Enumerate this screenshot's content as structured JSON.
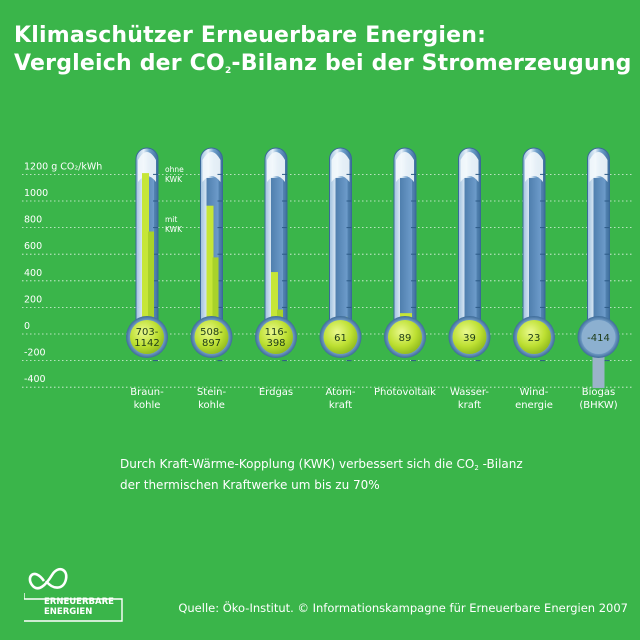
{
  "title": {
    "line1": "Klimaschützer Erneuerbare Energien:",
    "line2_pre": "Vergleich der CO",
    "line2_sub": "2",
    "line2_post": "-Bilanz bei der Stromerzeugung"
  },
  "chart_data": {
    "type": "bar",
    "unit_label": "1200 g CO₂/kWh",
    "yticks": [
      1200,
      1000,
      800,
      600,
      400,
      200,
      0,
      -200,
      -400
    ],
    "ylim": [
      -400,
      1200
    ],
    "legend": {
      "ohne": "ohne KWK",
      "mit": "mit KWK"
    },
    "categories": [
      {
        "label1": "Braun-",
        "label2": "kohle",
        "value_text": [
          "703-",
          "1142"
        ],
        "ohne_kwk": 1142,
        "mit_kwk": 703
      },
      {
        "label1": "Stein-",
        "label2": "kohle",
        "value_text": [
          "508-",
          "897"
        ],
        "ohne_kwk": 897,
        "mit_kwk": 508
      },
      {
        "label1": "Erdgas",
        "label2": "",
        "value_text": [
          "116-",
          "398"
        ],
        "ohne_kwk": 398,
        "mit_kwk": 116
      },
      {
        "label1": "Atom-",
        "label2": "kraft",
        "value_text": [
          "61"
        ],
        "ohne_kwk": 61,
        "mit_kwk": null
      },
      {
        "label1": "Photovoltaik",
        "label2": "",
        "value_text": [
          "89"
        ],
        "ohne_kwk": 89,
        "mit_kwk": null
      },
      {
        "label1": "Wasser-",
        "label2": "kraft",
        "value_text": [
          "39"
        ],
        "ohne_kwk": 39,
        "mit_kwk": null
      },
      {
        "label1": "Wind-",
        "label2": "energie",
        "value_text": [
          "23"
        ],
        "ohne_kwk": 23,
        "mit_kwk": null
      },
      {
        "label1": "Biogas",
        "label2": "(BHKW)",
        "value_text": [
          "-414"
        ],
        "ohne_kwk": -414,
        "mit_kwk": null
      }
    ]
  },
  "note": {
    "line1_pre": "Durch Kraft-Wärme-Kopplung (KWK) verbessert sich die CO",
    "line1_sub": "2",
    "line1_post": " -Bilanz",
    "line2": "der thermischen Kraftwerke um bis zu 70%"
  },
  "logo": {
    "line1": "ERNEUERBARE",
    "line2": "ENERGIEN"
  },
  "source": "Quelle: Öko-Institut. © Informationskampagne für Erneuerbare Energien 2007",
  "colors": {
    "background": "#3ab54a",
    "tube": "#5a8fbf",
    "tube_light": "#a9c8e2",
    "bar": "#c8e63a",
    "bar_light": "#e4f58a",
    "bulb": "#c4e835"
  }
}
